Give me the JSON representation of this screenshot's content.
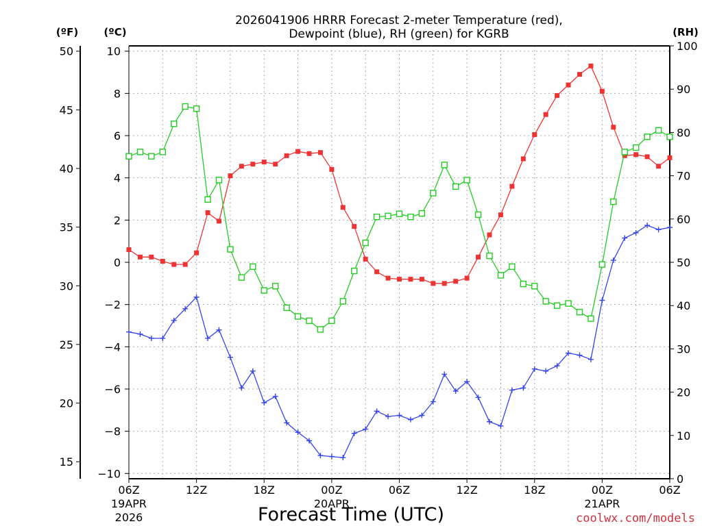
{
  "chart_data": {
    "type": "line",
    "title_line1": "2026041906 HRRR Forecast 2-meter Temperature (red),",
    "title_line2": "Dewpoint (blue), RH (green) for KGRB",
    "xlabel": "Forecast Time (UTC)",
    "left_outer_unit": "(ºF)",
    "left_inner_unit": "(ºC)",
    "right_unit": "(RH)",
    "credit": "coolwx.com/models",
    "grid": true,
    "legend": "none",
    "x_units": "forecast hour",
    "x_range": [
      0,
      48
    ],
    "x_ticks": [
      {
        "hour": 0,
        "label": "06Z",
        "sub1": "19APR",
        "sub2": "2026"
      },
      {
        "hour": 6,
        "label": "12Z",
        "sub1": "",
        "sub2": ""
      },
      {
        "hour": 12,
        "label": "18Z",
        "sub1": "",
        "sub2": ""
      },
      {
        "hour": 18,
        "label": "00Z",
        "sub1": "20APR",
        "sub2": ""
      },
      {
        "hour": 24,
        "label": "06Z",
        "sub1": "",
        "sub2": ""
      },
      {
        "hour": 30,
        "label": "12Z",
        "sub1": "",
        "sub2": ""
      },
      {
        "hour": 36,
        "label": "18Z",
        "sub1": "",
        "sub2": ""
      },
      {
        "hour": 42,
        "label": "00Z",
        "sub1": "21APR",
        "sub2": ""
      },
      {
        "hour": 48,
        "label": "06Z",
        "sub1": "",
        "sub2": ""
      }
    ],
    "celsius_range": [
      -10.25,
      10.25
    ],
    "celsius_ticks": [
      "10",
      "8",
      "6",
      "4",
      "2",
      "0",
      "−2",
      "−4",
      "−6",
      "−8",
      "−10"
    ],
    "fahrenheit_ticks": [
      "50",
      "45",
      "40",
      "35",
      "30",
      "25",
      "20",
      "15"
    ],
    "rh_range": [
      0,
      100
    ],
    "rh_ticks": [
      "100",
      "90",
      "80",
      "70",
      "60",
      "50",
      "40",
      "30",
      "20",
      "10",
      "0"
    ],
    "colors": {
      "temperature": "#ee3333",
      "dewpoint": "#3344ee",
      "rh": "#22cc22",
      "grid": "#aaaaaa"
    },
    "series": [
      {
        "key": "temperature",
        "axis": "celsius",
        "marker": "filled-square",
        "values": [
          0.6,
          0.25,
          0.25,
          0.05,
          -0.1,
          -0.1,
          0.45,
          2.35,
          1.95,
          4.1,
          4.55,
          4.65,
          4.75,
          4.65,
          5.05,
          5.25,
          5.15,
          5.2,
          4.4,
          2.6,
          1.7,
          0.15,
          -0.45,
          -0.75,
          -0.8,
          -0.8,
          -0.8,
          -1.0,
          -1.0,
          -0.9,
          -0.75,
          0.25,
          1.3,
          2.25,
          3.6,
          4.9,
          6.05,
          7.0,
          7.9,
          8.4,
          8.9,
          9.3,
          8.1,
          6.4,
          5.05,
          5.1,
          5.0,
          4.55,
          4.95
        ]
      },
      {
        "key": "dewpoint",
        "axis": "celsius",
        "marker": "plus",
        "values": [
          -3.3,
          -3.4,
          -3.6,
          -3.6,
          -2.75,
          -2.2,
          -1.65,
          -3.6,
          -3.2,
          -4.5,
          -5.95,
          -5.15,
          -6.65,
          -6.35,
          -7.6,
          -8.05,
          -8.45,
          -9.15,
          -9.2,
          -9.25,
          -8.1,
          -7.9,
          -7.05,
          -7.3,
          -7.25,
          -7.45,
          -7.25,
          -6.6,
          -5.3,
          -6.1,
          -5.65,
          -6.4,
          -7.55,
          -7.75,
          -6.05,
          -5.95,
          -5.05,
          -5.15,
          -4.9,
          -4.3,
          -4.4,
          -4.6,
          -1.8,
          0.1,
          1.15,
          1.4,
          1.75,
          1.55,
          1.65
        ]
      },
      {
        "key": "rh",
        "axis": "rh",
        "marker": "open-square",
        "values": [
          74.5,
          75.5,
          74.5,
          75.5,
          82,
          86,
          85.5,
          64.5,
          69,
          53,
          46.5,
          49,
          43.5,
          44.5,
          39.5,
          37.5,
          36.5,
          34.5,
          36.5,
          41,
          48,
          54.5,
          60.5,
          60.7,
          61.2,
          60.5,
          61.3,
          66,
          72.5,
          67.5,
          69,
          61,
          51.5,
          47,
          49,
          45,
          44.5,
          41,
          40,
          40.5,
          38.5,
          37,
          49.5,
          64,
          75.5,
          76.5,
          79,
          80.5,
          79
        ]
      }
    ]
  }
}
